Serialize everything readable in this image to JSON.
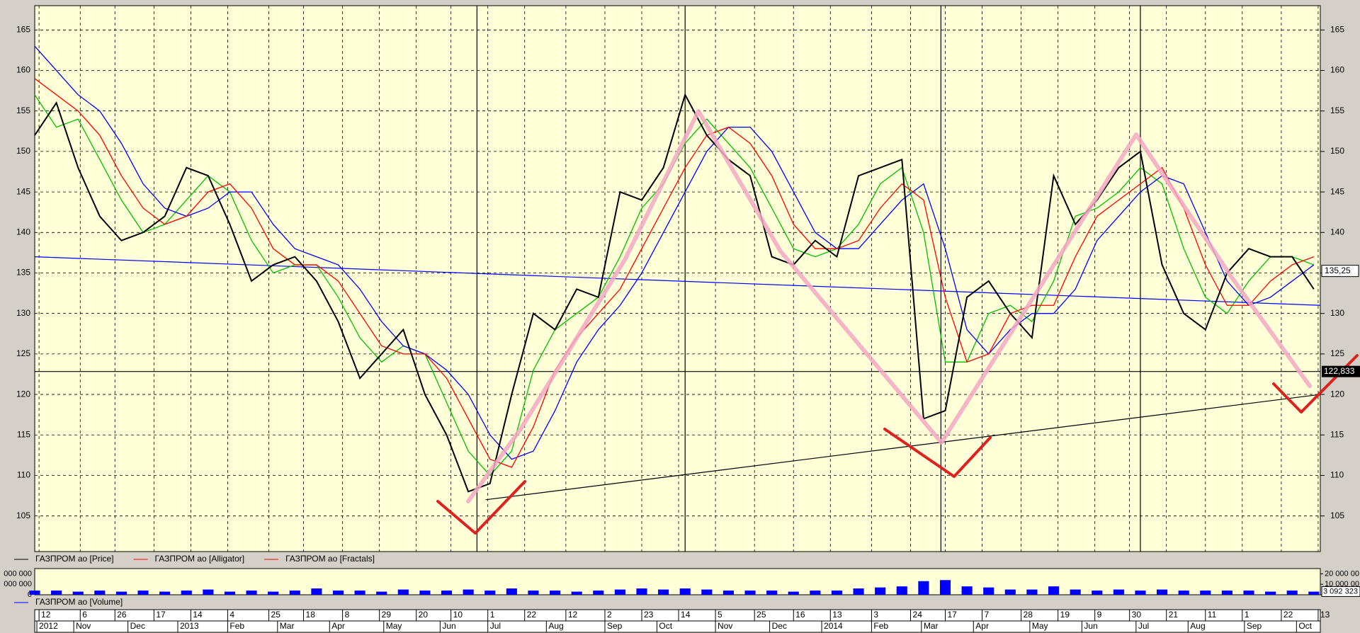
{
  "chart_data": {
    "type": "line",
    "x": [
      0,
      1,
      2,
      3,
      4,
      5,
      6,
      7,
      8,
      9,
      10,
      11,
      12,
      13,
      14,
      15,
      16,
      17,
      18,
      19,
      20,
      21,
      22,
      23,
      24,
      25,
      26,
      27,
      28,
      29,
      30,
      31,
      32,
      33,
      34,
      35,
      36,
      37,
      38,
      39,
      40,
      41,
      42,
      43,
      44,
      45,
      46,
      47,
      48,
      49,
      50,
      51,
      52,
      53,
      54,
      55,
      56,
      57,
      58,
      59
    ],
    "series": [
      {
        "name": "ГАЗПРОМ ао [Price]",
        "color": "#000000",
        "values": [
          152,
          156,
          148,
          142,
          139,
          140,
          142,
          148,
          147,
          141,
          134,
          136,
          137,
          134,
          129,
          122,
          125,
          128,
          120,
          115,
          108,
          109,
          120,
          130,
          128,
          133,
          132,
          145,
          144,
          148,
          157,
          152,
          149,
          147,
          137,
          136,
          139,
          137,
          147,
          148,
          149,
          117,
          118,
          132,
          134,
          130,
          127,
          147,
          141,
          144,
          148,
          150,
          136,
          130,
          128,
          135,
          138,
          137,
          137,
          133
        ]
      },
      {
        "name": "ГАЗПРОМ ао [Alligator]",
        "color": "#ff0000",
        "values": [
          159,
          157,
          155,
          152,
          147,
          143,
          141,
          142,
          145,
          146,
          143,
          138,
          136,
          136,
          134,
          130,
          126,
          125,
          125,
          122,
          117,
          112,
          111,
          116,
          123,
          127,
          130,
          133,
          138,
          143,
          148,
          152,
          153,
          151,
          147,
          141,
          138,
          138,
          139,
          143,
          146,
          144,
          132,
          124,
          125,
          130,
          131,
          131,
          137,
          142,
          144,
          146,
          148,
          143,
          136,
          131,
          131,
          134,
          136,
          137
        ]
      },
      {
        "color": "#0000ff",
        "values": [
          163,
          160,
          157,
          155,
          151,
          146,
          143,
          142,
          143,
          145,
          145,
          141,
          138,
          137,
          136,
          133,
          129,
          126,
          125,
          123,
          120,
          115,
          112,
          113,
          118,
          124,
          128,
          131,
          135,
          140,
          145,
          150,
          153,
          153,
          150,
          145,
          140,
          138,
          138,
          141,
          144,
          146,
          138,
          128,
          125,
          128,
          130,
          130,
          133,
          139,
          142,
          145,
          147,
          146,
          140,
          134,
          131,
          132,
          134,
          136
        ]
      },
      {
        "color": "#00c000",
        "values": [
          157,
          153,
          154,
          149,
          144,
          140,
          141,
          144,
          147,
          145,
          139,
          135,
          136,
          136,
          132,
          127,
          124,
          126,
          125,
          119,
          113,
          110,
          113,
          123,
          128,
          130,
          132,
          137,
          143,
          146,
          151,
          154,
          151,
          148,
          143,
          138,
          137,
          138,
          141,
          146,
          148,
          140,
          124,
          124,
          130,
          131,
          129,
          134,
          142,
          143,
          145,
          148,
          146,
          138,
          132,
          130,
          134,
          137,
          137,
          136
        ]
      }
    ],
    "fractals": {
      "name": "ГАЗПРОМ ао [Fractals]",
      "color": "#ff0000"
    },
    "xlim": [
      0,
      59.3
    ],
    "ylim": [
      100.6,
      168
    ],
    "yticks": [
      105,
      110,
      115,
      120,
      125,
      130,
      135,
      140,
      145,
      150,
      155,
      160,
      165
    ],
    "grid": true,
    "vlines": [
      20.4,
      30.0,
      41.8,
      51.0
    ],
    "trendlines": [
      {
        "color": "#0000ff",
        "x": [
          0,
          59.3
        ],
        "y": [
          137,
          131
        ]
      },
      {
        "color": "#000000",
        "x": [
          20.8,
          59.3
        ],
        "y": [
          107,
          120
        ]
      }
    ],
    "last_price": {
      "value": 135.25,
      "label": "135,25"
    },
    "hline": {
      "value": 122.833,
      "label": "122,833"
    },
    "xticks_top": [
      {
        "value": 0.2,
        "label": "12"
      },
      {
        "value": 2.1,
        "label": "6"
      },
      {
        "value": 3.7,
        "label": "26"
      },
      {
        "value": 5.5,
        "label": "17"
      },
      {
        "value": 7.2,
        "label": "14"
      },
      {
        "value": 8.9,
        "label": "4"
      },
      {
        "value": 10.8,
        "label": "25"
      },
      {
        "value": 12.4,
        "label": "18"
      },
      {
        "value": 14.2,
        "label": "8"
      },
      {
        "value": 15.9,
        "label": "29"
      },
      {
        "value": 17.6,
        "label": "20"
      },
      {
        "value": 19.2,
        "label": "10"
      },
      {
        "value": 20.9,
        "label": "1"
      },
      {
        "value": 22.6,
        "label": "22"
      },
      {
        "value": 24.5,
        "label": "12"
      },
      {
        "value": 26.3,
        "label": "2"
      },
      {
        "value": 28,
        "label": "23"
      },
      {
        "value": 29.7,
        "label": "14"
      },
      {
        "value": 31.4,
        "label": "5"
      },
      {
        "value": 33.2,
        "label": "25"
      },
      {
        "value": 35,
        "label": "16"
      },
      {
        "value": 36.7,
        "label": "13"
      },
      {
        "value": 38.6,
        "label": "3"
      },
      {
        "value": 40.4,
        "label": "24"
      },
      {
        "value": 42,
        "label": "17"
      },
      {
        "value": 43.7,
        "label": "7"
      },
      {
        "value": 45.5,
        "label": "28"
      },
      {
        "value": 47.2,
        "label": "19"
      },
      {
        "value": 48.9,
        "label": "9"
      },
      {
        "value": 50.5,
        "label": "30"
      },
      {
        "value": 52.2,
        "label": "21"
      },
      {
        "value": 54,
        "label": "11"
      },
      {
        "value": 55.7,
        "label": "1"
      },
      {
        "value": 57.5,
        "label": "22"
      },
      {
        "value": 59.2,
        "label": "13"
      }
    ],
    "xticks_bottom": [
      {
        "value": 0.1,
        "label": "2012"
      },
      {
        "value": 1.8,
        "label": "Nov"
      },
      {
        "value": 4.3,
        "label": "Dec"
      },
      {
        "value": 6.6,
        "label": "2013"
      },
      {
        "value": 8.9,
        "label": "Feb"
      },
      {
        "value": 11.2,
        "label": "Mar"
      },
      {
        "value": 13.6,
        "label": "Apr"
      },
      {
        "value": 16.1,
        "label": "May"
      },
      {
        "value": 18.7,
        "label": "Jun"
      },
      {
        "value": 20.9,
        "label": "Jul"
      },
      {
        "value": 23.6,
        "label": "Aug"
      },
      {
        "value": 26.3,
        "label": "Sep"
      },
      {
        "value": 28.7,
        "label": "Oct"
      },
      {
        "value": 31.4,
        "label": "Nov"
      },
      {
        "value": 33.9,
        "label": "Dec"
      },
      {
        "value": 36.3,
        "label": "2014"
      },
      {
        "value": 38.6,
        "label": "Feb"
      },
      {
        "value": 40.9,
        "label": "Mar"
      },
      {
        "value": 43.3,
        "label": "Apr"
      },
      {
        "value": 45.9,
        "label": "May"
      },
      {
        "value": 48.3,
        "label": "Jun"
      },
      {
        "value": 50.8,
        "label": "Jul"
      },
      {
        "value": 53.2,
        "label": "Aug"
      },
      {
        "value": 55.8,
        "label": "Sep"
      },
      {
        "value": 58.2,
        "label": "Oct"
      }
    ],
    "volume": {
      "name": "ГАЗПРОМ ао [Volume]",
      "color": "#0000ff",
      "values": [
        4000000,
        4000000,
        3000000,
        4000000,
        3000000,
        4000000,
        3000000,
        4000000,
        5000000,
        3000000,
        4000000,
        3000000,
        4000000,
        6000000,
        4000000,
        4000000,
        3000000,
        5000000,
        4000000,
        4000000,
        5000000,
        4000000,
        6000000,
        4000000,
        4000000,
        3000000,
        4000000,
        5000000,
        6000000,
        5000000,
        6000000,
        5000000,
        4000000,
        4000000,
        4000000,
        3000000,
        4000000,
        4000000,
        6000000,
        7000000,
        8000000,
        13000000,
        14000000,
        8000000,
        7000000,
        5000000,
        5000000,
        8000000,
        5000000,
        4000000,
        5000000,
        4000000,
        5000000,
        4000000,
        4000000,
        4000000,
        4000000,
        3000000,
        4000000,
        3000000
      ],
      "ylim": [
        0,
        25000000
      ],
      "yticks": [
        0,
        {
          "value": 10000000,
          "label": "10 000 00"
        },
        {
          "value": 20000000,
          "label": "20 000 00"
        }
      ],
      "left_ticks": [
        0,
        {
          "value": 10000000,
          "label": "000 000"
        },
        {
          "value": 20000000,
          "label": "000 000"
        }
      ],
      "last": {
        "value": 3092323,
        "label": "3 092 323"
      }
    }
  }
}
